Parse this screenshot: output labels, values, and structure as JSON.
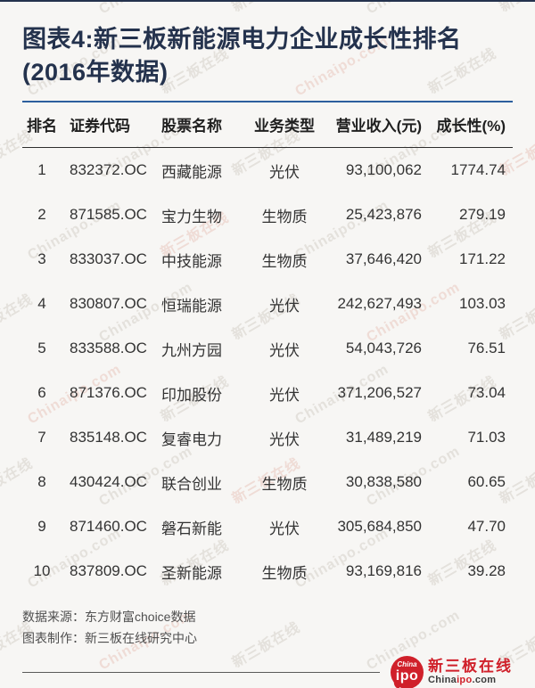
{
  "colors": {
    "background": "#f7f6f4",
    "title_navy": "#24324d",
    "accent_blue": "#2d5f9e",
    "logo_red": "#d0202a",
    "watermark_gray": "#e4e1dc",
    "watermark_rose": "#efdcd6"
  },
  "title": {
    "line1": "图表4:新三板新能源电力企业成长性排名",
    "line2": "(2016年数据)"
  },
  "chart_data": {
    "type": "table",
    "title": "图表4:新三板新能源电力企业成长性排名(2016年数据)",
    "columns": [
      "排名",
      "证券代码",
      "股票名称",
      "业务类型",
      "营业收入(元)",
      "成长性(%)"
    ],
    "rows": [
      [
        "1",
        "832372.OC",
        "西藏能源",
        "光伏",
        "93,100,062",
        "1774.74"
      ],
      [
        "2",
        "871585.OC",
        "宝力生物",
        "生物质",
        "25,423,876",
        "279.19"
      ],
      [
        "3",
        "833037.OC",
        "中技能源",
        "生物质",
        "37,646,420",
        "171.22"
      ],
      [
        "4",
        "830807.OC",
        "恒瑞能源",
        "光伏",
        "242,627,493",
        "103.03"
      ],
      [
        "5",
        "833588.OC",
        "九州方园",
        "光伏",
        "54,043,726",
        "76.51"
      ],
      [
        "6",
        "871376.OC",
        "印加股份",
        "光伏",
        "371,206,527",
        "73.04"
      ],
      [
        "7",
        "835148.OC",
        "复睿电力",
        "光伏",
        "31,489,219",
        "71.03"
      ],
      [
        "8",
        "430424.OC",
        "联合创业",
        "生物质",
        "30,838,580",
        "60.65"
      ],
      [
        "9",
        "871460.OC",
        "磐石新能",
        "光伏",
        "305,684,850",
        "47.70"
      ],
      [
        "10",
        "837809.OC",
        "圣新能源",
        "生物质",
        "93,169,816",
        "39.28"
      ]
    ]
  },
  "footer": {
    "source": "数据来源：东方财富choice数据",
    "credit": "图表制作：新三板在线研究中心"
  },
  "logo": {
    "badge_top": "China",
    "badge_main": "ipo",
    "name_cn": "新三板在线",
    "url_prefix": "China",
    "url_mid": "ipo",
    "url_suffix": ".com"
  },
  "watermark": {
    "texts": [
      "新三板在线",
      "Chinaipo.com"
    ]
  }
}
